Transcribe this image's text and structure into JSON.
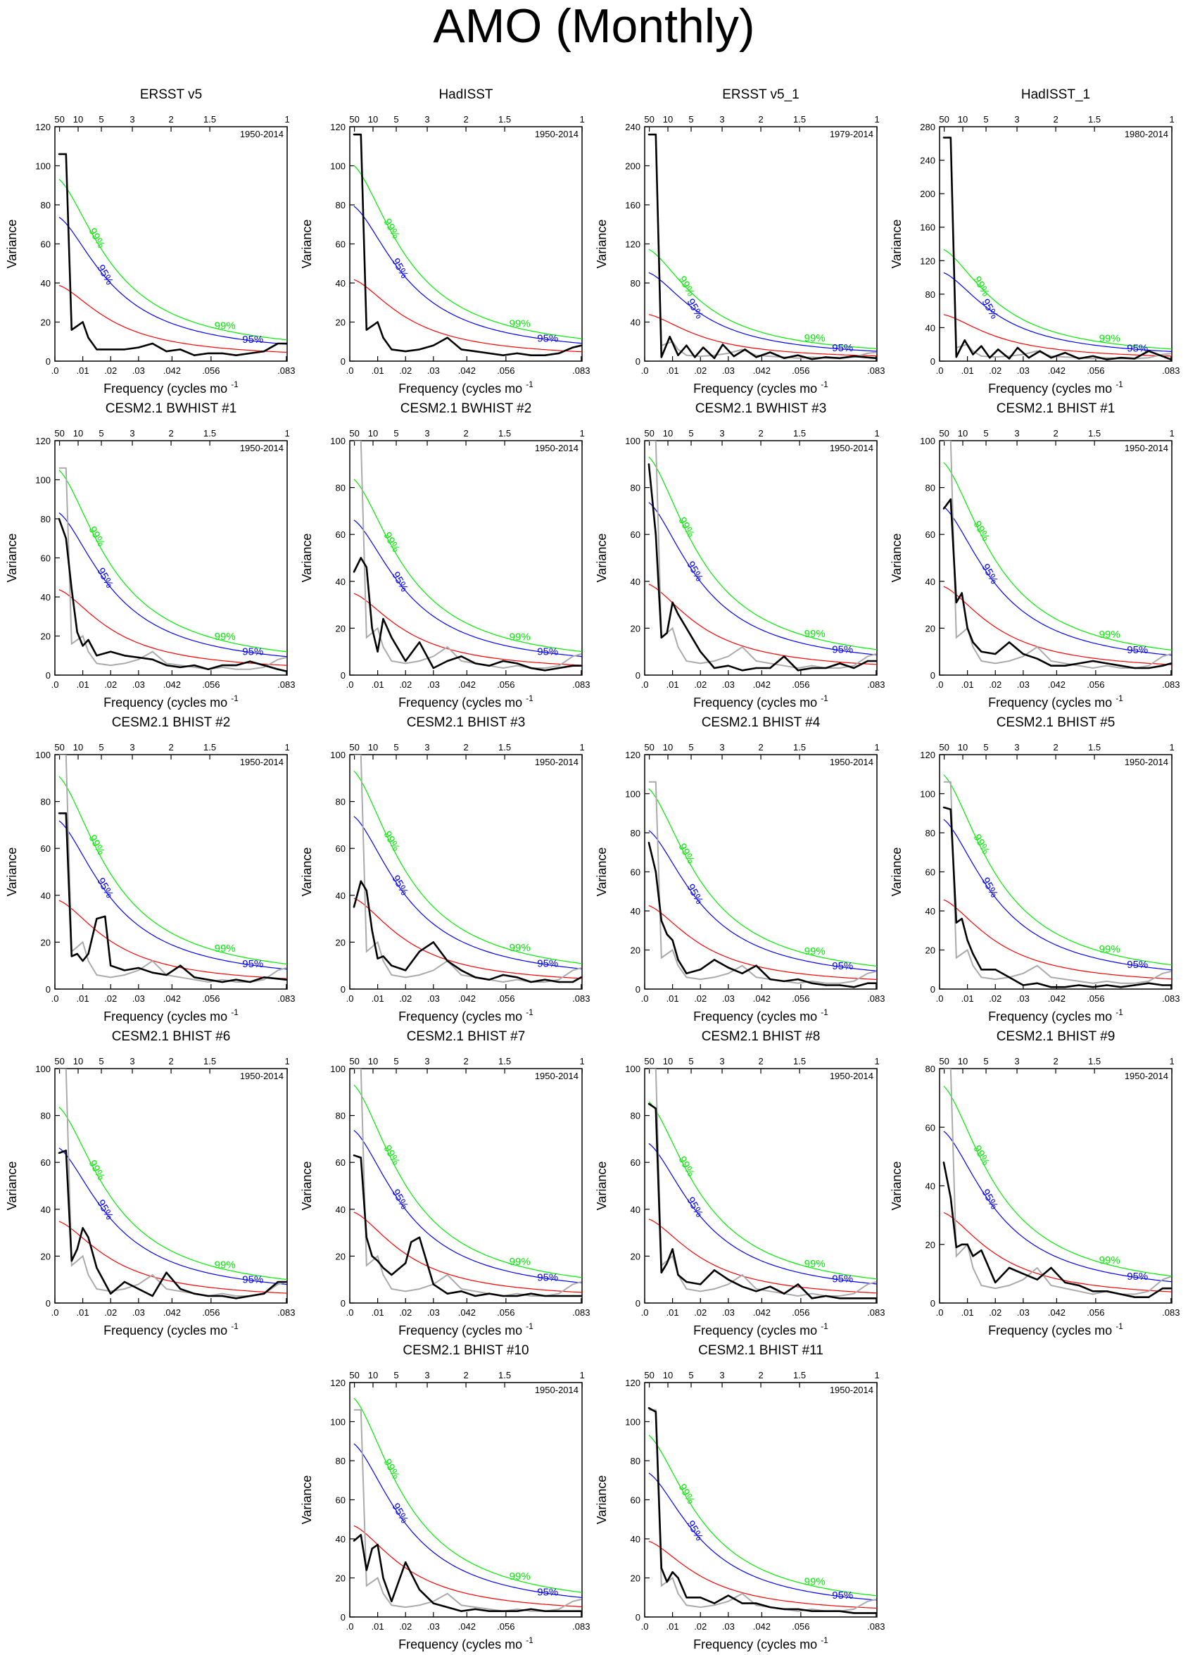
{
  "page": {
    "title": "AMO (Monthly)"
  },
  "common": {
    "xlabel": "Frequency (cycles mo",
    "xlabel_sup": "-1",
    "ylabel": "Variance",
    "xticks": [
      ".0",
      ".01",
      ".02",
      ".03",
      ".042",
      ".056",
      ".083"
    ],
    "xtick_values": [
      0,
      0.01,
      0.02,
      0.03,
      0.042,
      0.056,
      0.083
    ],
    "top_ticks": [
      "50",
      "10",
      "5",
      "3",
      "2",
      "1.5",
      "1"
    ],
    "top_tick_periods_yr": [
      50,
      10,
      5,
      3,
      2,
      1.5,
      1
    ],
    "xlim": [
      0,
      0.0833
    ],
    "label_99": "99%",
    "label_95": "95%",
    "colors": {
      "spectrum": "#000000",
      "obs_ref": "#aaaaaa",
      "red_noise": "#ff0000",
      "ci95": "#0000ff",
      "ci99": "#00ee00"
    }
  },
  "chart_data": [
    {
      "type": "line",
      "title": "ERSST v5",
      "period": "1950-2014",
      "ylim": [
        0,
        120
      ],
      "yticks": [
        0,
        20,
        40,
        60,
        80,
        100,
        120
      ],
      "peak": 106,
      "rn0": 38,
      "show_obs": false,
      "x": [
        0.0015,
        0.004,
        0.006,
        0.008,
        0.01,
        0.012,
        0.015,
        0.02,
        0.025,
        0.03,
        0.035,
        0.04,
        0.045,
        0.05,
        0.055,
        0.06,
        0.065,
        0.07,
        0.075,
        0.08,
        0.083
      ],
      "values": [
        106,
        106,
        16,
        18,
        20,
        12,
        6,
        6,
        6,
        7,
        9,
        5,
        6,
        3,
        4,
        4,
        3,
        4,
        5,
        9,
        9
      ]
    },
    {
      "type": "line",
      "title": "HadISST",
      "period": "1950-2014",
      "ylim": [
        0,
        120
      ],
      "yticks": [
        0,
        20,
        40,
        60,
        80,
        100,
        120
      ],
      "peak": 116,
      "rn0": 41,
      "show_obs": false,
      "x": [
        0.0015,
        0.004,
        0.006,
        0.008,
        0.01,
        0.012,
        0.015,
        0.02,
        0.025,
        0.03,
        0.035,
        0.04,
        0.045,
        0.05,
        0.055,
        0.06,
        0.065,
        0.07,
        0.075,
        0.08,
        0.083
      ],
      "values": [
        116,
        116,
        16,
        18,
        20,
        12,
        6,
        5,
        6,
        8,
        12,
        6,
        5,
        4,
        3,
        4,
        3,
        3,
        4,
        7,
        8
      ]
    },
    {
      "type": "line",
      "title": "ERSST v5_1",
      "period": "1979-2014",
      "ylim": [
        0,
        240
      ],
      "yticks": [
        0,
        40,
        80,
        120,
        160,
        200,
        240
      ],
      "peak": 232,
      "rn0": 47,
      "show_obs": true,
      "x": [
        0.0015,
        0.004,
        0.006,
        0.009,
        0.012,
        0.015,
        0.018,
        0.021,
        0.025,
        0.028,
        0.032,
        0.036,
        0.04,
        0.045,
        0.05,
        0.055,
        0.06,
        0.065,
        0.07,
        0.075,
        0.083
      ],
      "values": [
        232,
        232,
        4,
        25,
        6,
        16,
        4,
        14,
        3,
        17,
        5,
        12,
        4,
        9,
        3,
        6,
        2,
        4,
        3,
        5,
        3
      ]
    },
    {
      "type": "line",
      "title": "HadISST_1",
      "period": "1980-2014",
      "ylim": [
        0,
        280
      ],
      "yticks": [
        0,
        40,
        80,
        120,
        160,
        200,
        240,
        280
      ],
      "peak": 267,
      "rn0": 55,
      "show_obs": true,
      "x": [
        0.0015,
        0.004,
        0.006,
        0.009,
        0.012,
        0.015,
        0.018,
        0.021,
        0.025,
        0.028,
        0.032,
        0.036,
        0.04,
        0.045,
        0.05,
        0.055,
        0.06,
        0.065,
        0.07,
        0.075,
        0.083
      ],
      "values": [
        267,
        267,
        5,
        25,
        8,
        18,
        4,
        14,
        3,
        16,
        4,
        12,
        4,
        10,
        3,
        6,
        2,
        4,
        3,
        12,
        2
      ]
    },
    {
      "type": "line",
      "title": "CESM2.1 BWHIST #1",
      "period": "1950-2014",
      "ylim": [
        0,
        120
      ],
      "yticks": [
        0,
        20,
        40,
        60,
        80,
        100,
        120
      ],
      "peak": 106,
      "rn0": 43,
      "show_obs": true,
      "x": [
        0.0015,
        0.004,
        0.006,
        0.008,
        0.01,
        0.012,
        0.015,
        0.02,
        0.025,
        0.03,
        0.035,
        0.04,
        0.045,
        0.05,
        0.055,
        0.06,
        0.065,
        0.07,
        0.075,
        0.08,
        0.083
      ],
      "values": [
        80,
        70,
        44,
        22,
        15,
        18,
        10,
        12,
        10,
        9,
        8,
        5,
        4,
        5,
        3,
        5,
        5,
        7,
        5,
        3,
        2
      ]
    },
    {
      "type": "line",
      "title": "CESM2.1 BWHIST #2",
      "period": "1950-2014",
      "ylim": [
        0,
        100
      ],
      "yticks": [
        0,
        20,
        40,
        60,
        80,
        100
      ],
      "peak": 100,
      "rn0": 34,
      "show_obs": true,
      "x": [
        0.0015,
        0.004,
        0.006,
        0.008,
        0.01,
        0.012,
        0.015,
        0.02,
        0.025,
        0.03,
        0.035,
        0.04,
        0.045,
        0.05,
        0.055,
        0.06,
        0.065,
        0.07,
        0.075,
        0.08,
        0.083
      ],
      "values": [
        44,
        50,
        46,
        20,
        10,
        24,
        16,
        6,
        14,
        3,
        6,
        8,
        5,
        4,
        6,
        5,
        3,
        2,
        3,
        4,
        4
      ]
    },
    {
      "type": "line",
      "title": "CESM2.1 BWHIST #3",
      "period": "1950-2014",
      "ylim": [
        0,
        100
      ],
      "yticks": [
        0,
        20,
        40,
        60,
        80,
        100
      ],
      "peak": 100,
      "rn0": 38,
      "show_obs": true,
      "x": [
        0.0015,
        0.004,
        0.006,
        0.008,
        0.01,
        0.012,
        0.015,
        0.02,
        0.025,
        0.03,
        0.035,
        0.04,
        0.045,
        0.05,
        0.055,
        0.06,
        0.065,
        0.07,
        0.075,
        0.08,
        0.083
      ],
      "values": [
        90,
        60,
        16,
        18,
        31,
        26,
        20,
        10,
        3,
        4,
        2,
        3,
        3,
        8,
        2,
        3,
        3,
        5,
        3,
        6,
        6
      ]
    },
    {
      "type": "line",
      "title": "CESM2.1 BHIST #1",
      "period": "1950-2014",
      "ylim": [
        0,
        100
      ],
      "yticks": [
        0,
        20,
        40,
        60,
        80,
        100
      ],
      "peak": 100,
      "rn0": 37,
      "show_obs": true,
      "x": [
        0.0015,
        0.004,
        0.006,
        0.008,
        0.01,
        0.012,
        0.015,
        0.02,
        0.025,
        0.03,
        0.035,
        0.04,
        0.045,
        0.05,
        0.055,
        0.06,
        0.065,
        0.07,
        0.075,
        0.08,
        0.083
      ],
      "values": [
        71,
        75,
        31,
        35,
        20,
        14,
        10,
        9,
        14,
        9,
        7,
        4,
        4,
        5,
        6,
        5,
        4,
        3,
        3,
        4,
        5
      ]
    },
    {
      "type": "line",
      "title": "CESM2.1 BHIST #2",
      "period": "1950-2014",
      "ylim": [
        0,
        100
      ],
      "yticks": [
        0,
        20,
        40,
        60,
        80,
        100
      ],
      "peak": 100,
      "rn0": 37,
      "show_obs": true,
      "x": [
        0.0015,
        0.004,
        0.006,
        0.008,
        0.01,
        0.012,
        0.015,
        0.018,
        0.02,
        0.025,
        0.03,
        0.035,
        0.04,
        0.045,
        0.05,
        0.055,
        0.06,
        0.065,
        0.07,
        0.075,
        0.083
      ],
      "values": [
        75,
        75,
        14,
        15,
        12,
        15,
        30,
        31,
        10,
        8,
        9,
        7,
        6,
        10,
        5,
        4,
        3,
        4,
        3,
        5,
        4
      ]
    },
    {
      "type": "line",
      "title": "CESM2.1 BHIST #3",
      "period": "1950-2014",
      "ylim": [
        0,
        100
      ],
      "yticks": [
        0,
        20,
        40,
        60,
        80,
        100
      ],
      "peak": 100,
      "rn0": 38,
      "show_obs": true,
      "x": [
        0.0015,
        0.004,
        0.006,
        0.008,
        0.01,
        0.012,
        0.015,
        0.02,
        0.025,
        0.03,
        0.035,
        0.04,
        0.045,
        0.05,
        0.055,
        0.06,
        0.065,
        0.07,
        0.075,
        0.08,
        0.083
      ],
      "values": [
        35,
        46,
        42,
        25,
        13,
        14,
        10,
        8,
        16,
        20,
        12,
        8,
        5,
        4,
        6,
        5,
        3,
        4,
        3,
        3,
        5
      ]
    },
    {
      "type": "line",
      "title": "CESM2.1 BHIST #4",
      "period": "1950-2014",
      "ylim": [
        0,
        120
      ],
      "yticks": [
        0,
        20,
        40,
        60,
        80,
        100,
        120
      ],
      "peak": 106,
      "rn0": 42,
      "show_obs": true,
      "x": [
        0.0015,
        0.004,
        0.006,
        0.008,
        0.01,
        0.012,
        0.015,
        0.02,
        0.025,
        0.03,
        0.035,
        0.04,
        0.045,
        0.05,
        0.055,
        0.06,
        0.065,
        0.07,
        0.075,
        0.08,
        0.083
      ],
      "values": [
        75,
        60,
        35,
        28,
        25,
        15,
        8,
        10,
        15,
        11,
        8,
        12,
        5,
        4,
        5,
        3,
        2,
        2,
        1,
        3,
        3
      ]
    },
    {
      "type": "line",
      "title": "CESM2.1 BHIST #5",
      "period": "1950-2014",
      "ylim": [
        0,
        120
      ],
      "yticks": [
        0,
        20,
        40,
        60,
        80,
        100,
        120
      ],
      "peak": 106,
      "rn0": 45,
      "show_obs": true,
      "x": [
        0.0015,
        0.004,
        0.006,
        0.008,
        0.01,
        0.012,
        0.015,
        0.02,
        0.025,
        0.03,
        0.035,
        0.04,
        0.045,
        0.05,
        0.055,
        0.06,
        0.065,
        0.07,
        0.075,
        0.08,
        0.083
      ],
      "values": [
        93,
        92,
        34,
        36,
        25,
        18,
        10,
        10,
        6,
        2,
        3,
        1,
        1,
        2,
        1,
        2,
        1,
        2,
        3,
        2,
        2
      ]
    },
    {
      "type": "line",
      "title": "CESM2.1 BHIST #6",
      "period": "1950-2014",
      "ylim": [
        0,
        100
      ],
      "yticks": [
        0,
        20,
        40,
        60,
        80,
        100
      ],
      "peak": 100,
      "rn0": 34,
      "show_obs": true,
      "x": [
        0.0015,
        0.004,
        0.006,
        0.008,
        0.01,
        0.012,
        0.015,
        0.02,
        0.025,
        0.03,
        0.035,
        0.04,
        0.045,
        0.05,
        0.055,
        0.06,
        0.065,
        0.07,
        0.075,
        0.08,
        0.083
      ],
      "values": [
        64,
        65,
        18,
        23,
        32,
        28,
        15,
        4,
        9,
        6,
        3,
        13,
        6,
        4,
        3,
        3,
        2,
        3,
        4,
        9,
        9
      ]
    },
    {
      "type": "line",
      "title": "CESM2.1 BHIST #7",
      "period": "1950-2014",
      "ylim": [
        0,
        100
      ],
      "yticks": [
        0,
        20,
        40,
        60,
        80,
        100
      ],
      "peak": 100,
      "rn0": 38,
      "show_obs": true,
      "x": [
        0.0015,
        0.004,
        0.006,
        0.008,
        0.01,
        0.012,
        0.015,
        0.02,
        0.022,
        0.025,
        0.03,
        0.035,
        0.04,
        0.045,
        0.05,
        0.055,
        0.06,
        0.065,
        0.07,
        0.075,
        0.083
      ],
      "values": [
        63,
        62,
        28,
        20,
        18,
        15,
        12,
        17,
        26,
        28,
        8,
        4,
        5,
        3,
        4,
        3,
        3,
        4,
        3,
        3,
        3
      ]
    },
    {
      "type": "line",
      "title": "CESM2.1 BHIST #8",
      "period": "1950-2014",
      "ylim": [
        0,
        100
      ],
      "yticks": [
        0,
        20,
        40,
        60,
        80,
        100
      ],
      "peak": 100,
      "rn0": 35,
      "show_obs": true,
      "x": [
        0.0015,
        0.004,
        0.006,
        0.008,
        0.01,
        0.012,
        0.015,
        0.02,
        0.025,
        0.03,
        0.035,
        0.04,
        0.045,
        0.05,
        0.055,
        0.06,
        0.065,
        0.07,
        0.075,
        0.08,
        0.083
      ],
      "values": [
        85,
        83,
        13,
        17,
        23,
        12,
        9,
        8,
        14,
        10,
        7,
        5,
        7,
        4,
        8,
        2,
        3,
        2,
        2,
        2,
        2
      ]
    },
    {
      "type": "line",
      "title": "CESM2.1 BHIST #9",
      "period": "1950-2014",
      "ylim": [
        0,
        80
      ],
      "yticks": [
        0,
        20,
        40,
        60,
        80
      ],
      "peak": 80,
      "rn0": 30,
      "show_obs": true,
      "x": [
        0.0015,
        0.004,
        0.006,
        0.008,
        0.01,
        0.012,
        0.015,
        0.02,
        0.025,
        0.03,
        0.035,
        0.04,
        0.045,
        0.05,
        0.055,
        0.06,
        0.065,
        0.07,
        0.075,
        0.08,
        0.083
      ],
      "values": [
        48,
        36,
        19,
        20,
        20,
        16,
        18,
        7,
        12,
        10,
        8,
        12,
        7,
        6,
        4,
        4,
        3,
        2,
        2,
        5,
        5
      ]
    },
    {
      "type": "line",
      "title": "CESM2.1 BHIST #10",
      "period": "1950-2014",
      "ylim": [
        0,
        120
      ],
      "yticks": [
        0,
        20,
        40,
        60,
        80,
        100,
        120
      ],
      "peak": 106,
      "rn0": 46,
      "show_obs": true,
      "x": [
        0.0015,
        0.004,
        0.006,
        0.008,
        0.01,
        0.012,
        0.015,
        0.02,
        0.025,
        0.03,
        0.035,
        0.04,
        0.045,
        0.05,
        0.055,
        0.06,
        0.065,
        0.07,
        0.075,
        0.08,
        0.083
      ],
      "values": [
        39,
        42,
        24,
        35,
        37,
        20,
        8,
        28,
        14,
        7,
        5,
        3,
        4,
        3,
        3,
        3,
        4,
        3,
        3,
        3,
        3
      ]
    },
    {
      "type": "line",
      "title": "CESM2.1 BHIST #11",
      "period": "1950-2014",
      "ylim": [
        0,
        120
      ],
      "yticks": [
        0,
        20,
        40,
        60,
        80,
        100,
        120
      ],
      "peak": 106,
      "rn0": 38,
      "show_obs": true,
      "x": [
        0.0015,
        0.004,
        0.006,
        0.008,
        0.01,
        0.012,
        0.015,
        0.02,
        0.025,
        0.03,
        0.035,
        0.04,
        0.045,
        0.05,
        0.055,
        0.06,
        0.065,
        0.07,
        0.075,
        0.08,
        0.083
      ],
      "values": [
        107,
        105,
        25,
        18,
        23,
        20,
        10,
        10,
        7,
        11,
        7,
        7,
        5,
        4,
        4,
        3,
        3,
        3,
        2,
        2,
        2
      ]
    }
  ]
}
